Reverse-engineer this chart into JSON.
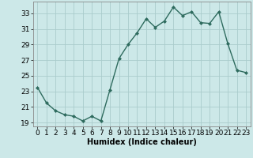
{
  "x": [
    0,
    1,
    2,
    3,
    4,
    5,
    6,
    7,
    8,
    9,
    10,
    11,
    12,
    13,
    14,
    15,
    16,
    17,
    18,
    19,
    20,
    21,
    22,
    23
  ],
  "y": [
    23.5,
    21.5,
    20.5,
    20.0,
    19.8,
    19.2,
    19.8,
    19.2,
    23.2,
    27.2,
    29.0,
    30.5,
    32.3,
    31.2,
    32.0,
    33.8,
    32.7,
    33.2,
    31.8,
    31.7,
    33.2,
    29.1,
    25.7,
    25.4
  ],
  "line_color": "#2e6b5e",
  "marker": "D",
  "marker_size": 2,
  "bg_color": "#cce8e8",
  "grid_color": "#aacccc",
  "xlabel": "Humidex (Indice chaleur)",
  "xlim": [
    -0.5,
    23.5
  ],
  "ylim": [
    18.5,
    34.5
  ],
  "yticks": [
    19,
    21,
    23,
    25,
    27,
    29,
    31,
    33
  ],
  "xticks": [
    0,
    1,
    2,
    3,
    4,
    5,
    6,
    7,
    8,
    9,
    10,
    11,
    12,
    13,
    14,
    15,
    16,
    17,
    18,
    19,
    20,
    21,
    22,
    23
  ],
  "xlabel_fontsize": 7,
  "tick_fontsize": 6.5,
  "line_width": 1.0
}
